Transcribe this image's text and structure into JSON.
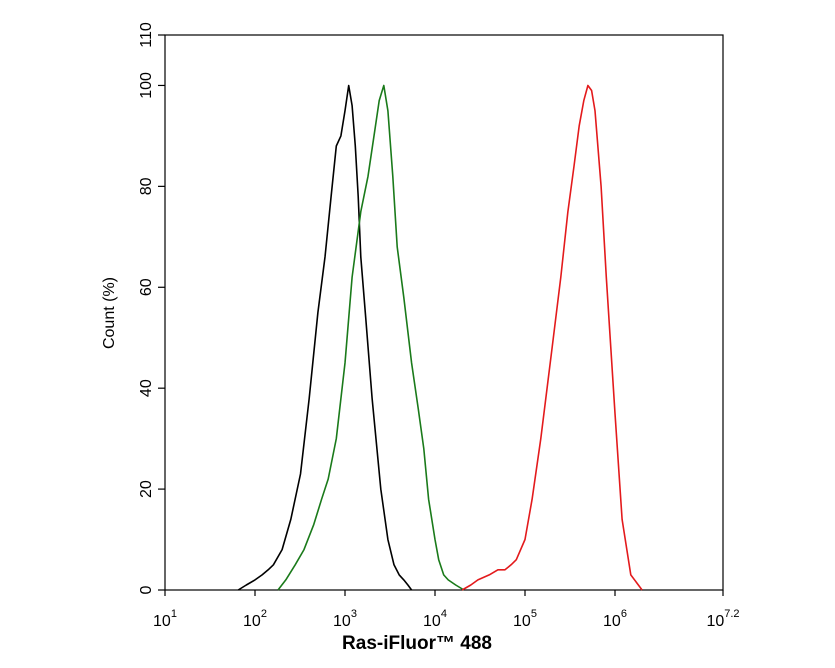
{
  "chart_data": {
    "type": "line",
    "title": "",
    "xlabel": "Ras-iFluor™ 488",
    "ylabel": "Count (%)",
    "x_scale": "log10",
    "xlim": [
      10,
      15848931.9
    ],
    "ylim": [
      0,
      110
    ],
    "grid": false,
    "legend": "none",
    "x_ticks": [
      {
        "base": "10",
        "exp": "1",
        "value": 10
      },
      {
        "base": "10",
        "exp": "2",
        "value": 100
      },
      {
        "base": "10",
        "exp": "3",
        "value": 1000
      },
      {
        "base": "10",
        "exp": "4",
        "value": 10000
      },
      {
        "base": "10",
        "exp": "5",
        "value": 100000
      },
      {
        "base": "10",
        "exp": "6",
        "value": 1000000
      },
      {
        "base": "10",
        "exp": "7.2",
        "value": 15848931.9
      }
    ],
    "y_ticks": [
      "0",
      "20",
      "40",
      "60",
      "80",
      "100",
      "110"
    ],
    "series": [
      {
        "color": "#000000",
        "x": [
          65,
          80,
          100,
          120,
          140,
          160,
          200,
          250,
          320,
          400,
          500,
          600,
          700,
          800,
          900,
          1000,
          1100,
          1200,
          1300,
          1400,
          1500,
          1700,
          2000,
          2500,
          3000,
          3500,
          4000,
          4500,
          5000,
          5500
        ],
        "y": [
          0,
          1,
          2,
          3,
          4,
          5,
          8,
          14,
          23,
          38,
          55,
          66,
          78,
          88,
          90,
          95,
          100,
          96,
          88,
          78,
          66,
          54,
          38,
          20,
          10,
          5,
          3,
          2,
          1,
          0
        ]
      },
      {
        "color": "#1a7a1a",
        "x": [
          180,
          220,
          280,
          350,
          450,
          550,
          650,
          800,
          1000,
          1200,
          1500,
          1800,
          2100,
          2400,
          2700,
          3000,
          3400,
          3800,
          4500,
          5500,
          6500,
          7500,
          8500,
          10000,
          11000,
          12500,
          14000,
          17000,
          21000
        ],
        "y": [
          0,
          2,
          5,
          8,
          13,
          18,
          22,
          30,
          45,
          62,
          75,
          82,
          90,
          97,
          100,
          95,
          82,
          68,
          58,
          45,
          36,
          28,
          18,
          10,
          6,
          3,
          2,
          1,
          0
        ]
      },
      {
        "color": "#e31a1c",
        "x": [
          20000,
          25000,
          30000,
          40000,
          50000,
          60000,
          70000,
          80000,
          100000,
          120000,
          150000,
          200000,
          250000,
          300000,
          350000,
          400000,
          450000,
          500000,
          550000,
          600000,
          700000,
          800000,
          1000000,
          1200000,
          1500000,
          2000000
        ],
        "y": [
          0,
          1,
          2,
          3,
          4,
          4,
          5,
          6,
          10,
          18,
          30,
          48,
          62,
          75,
          84,
          92,
          97,
          100,
          99,
          95,
          80,
          62,
          35,
          14,
          3,
          0
        ]
      }
    ]
  }
}
